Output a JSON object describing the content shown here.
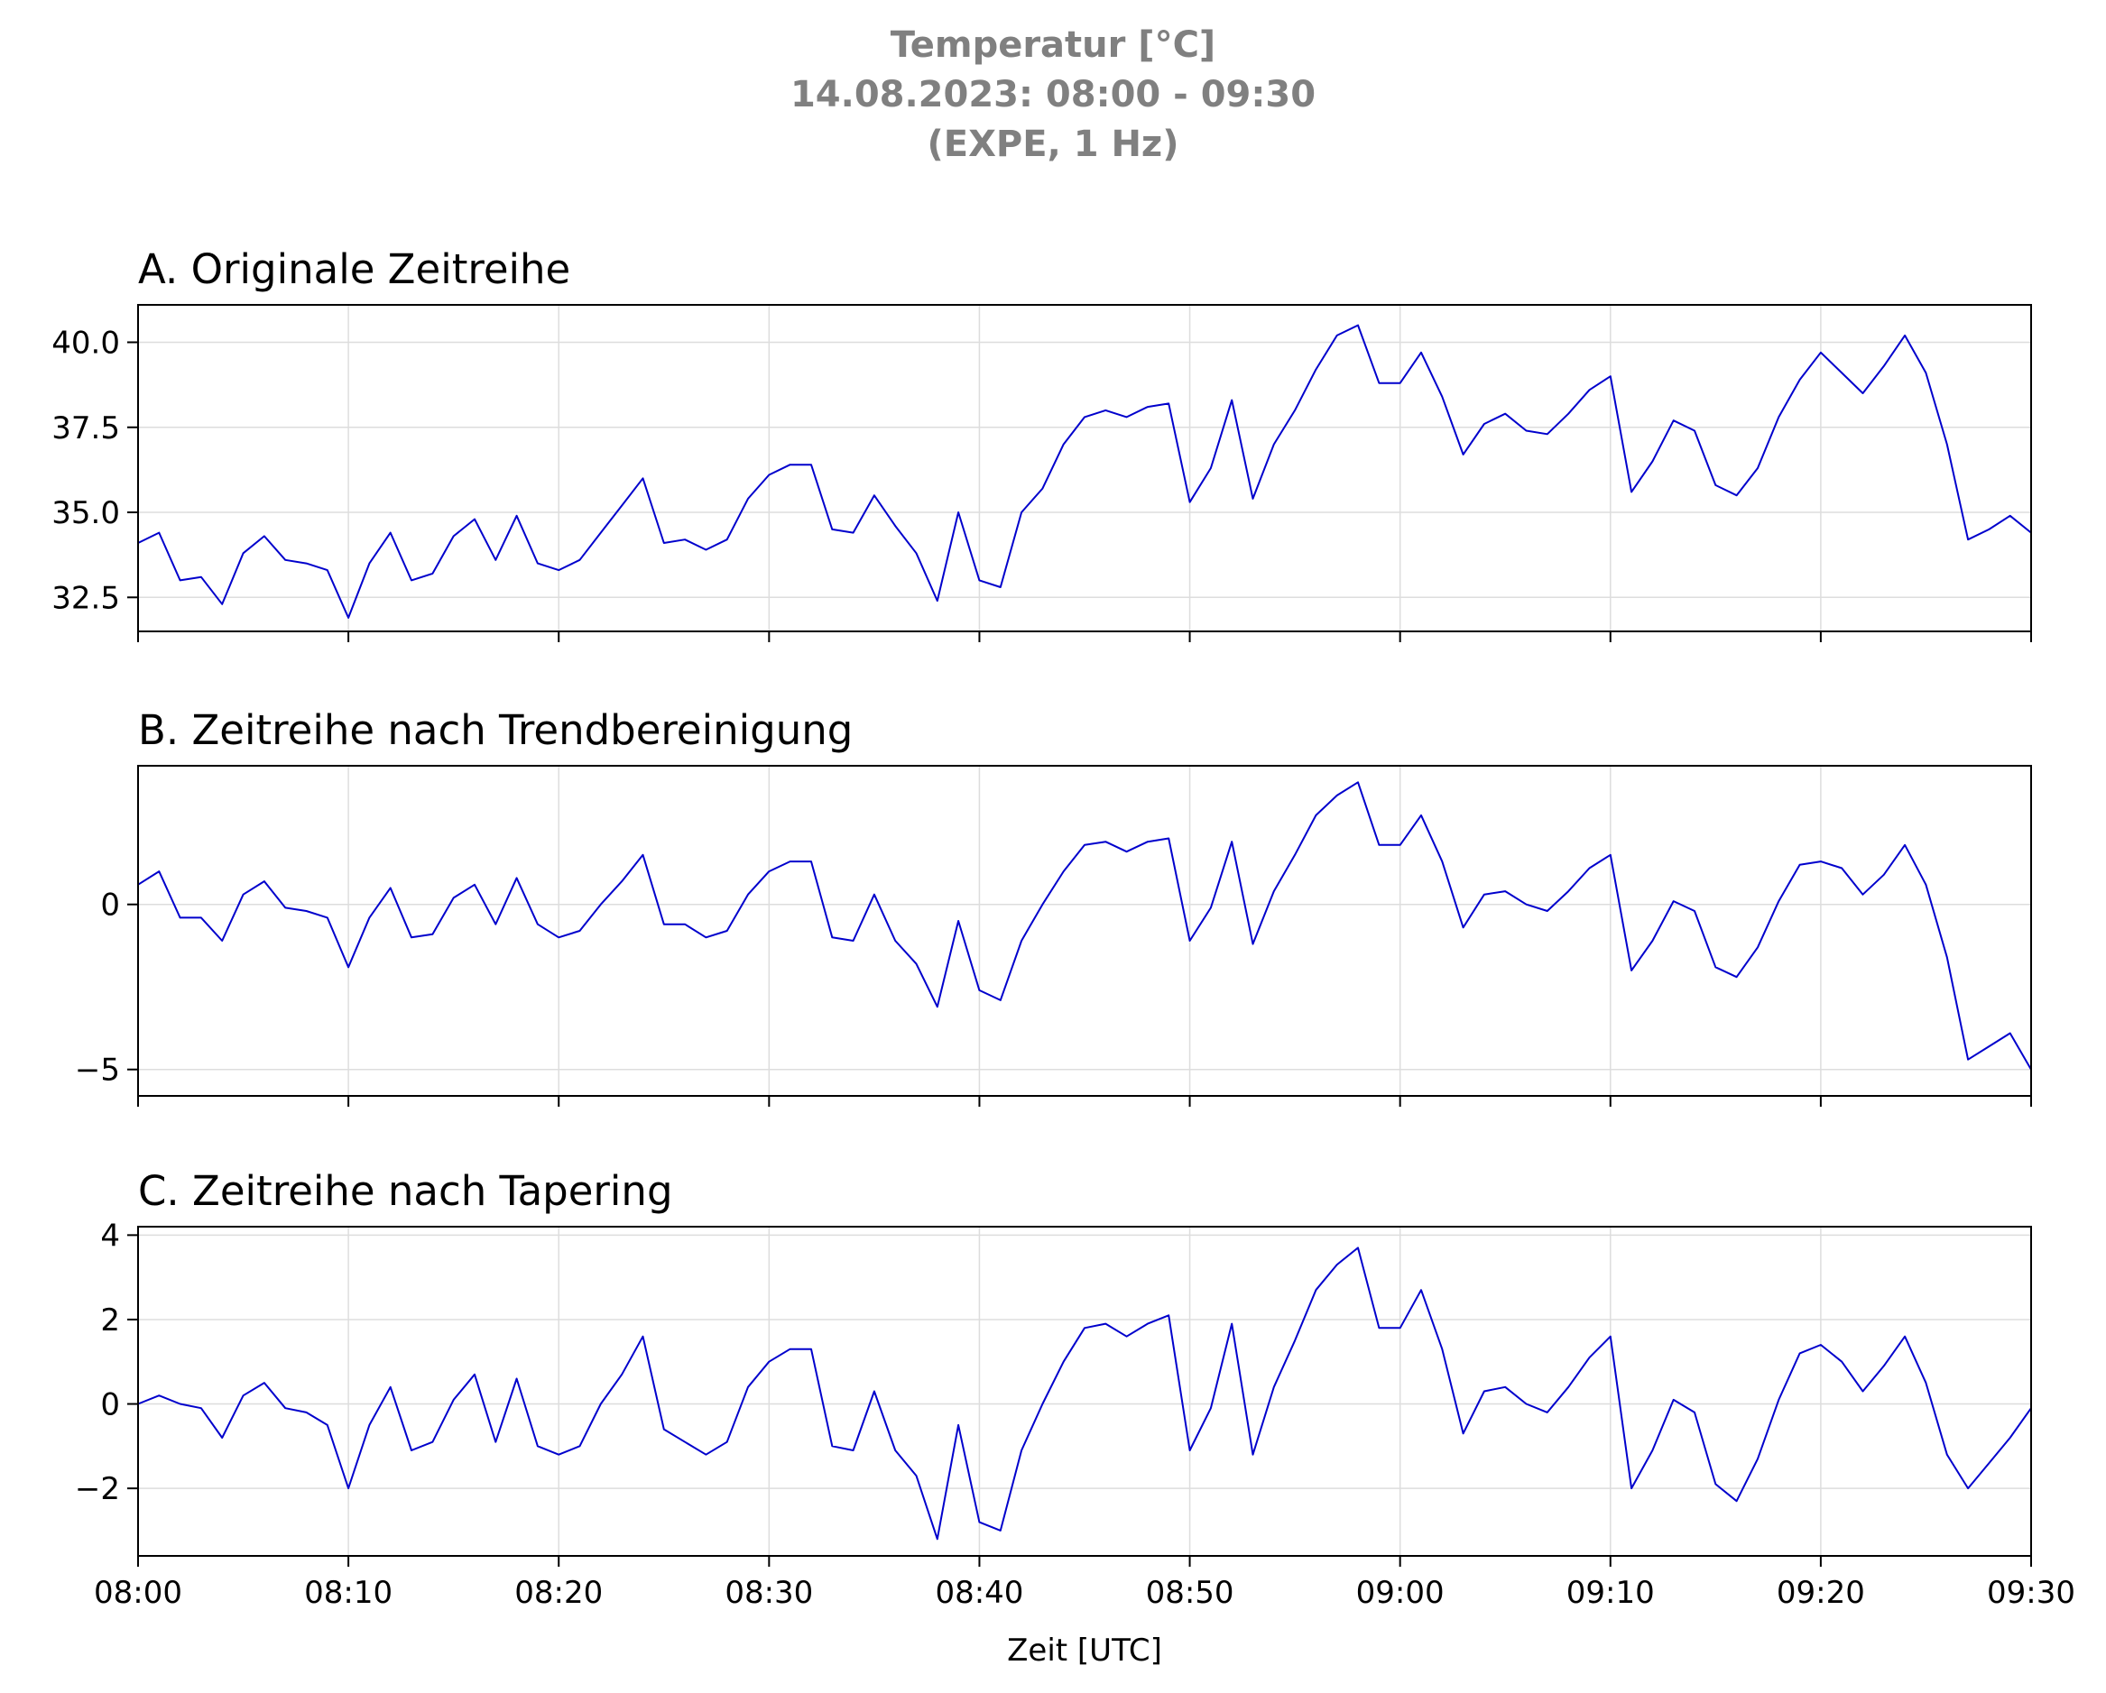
{
  "figure": {
    "title_lines": [
      "Temperatur [°C]",
      "14.08.2023:  08:00 -  09:30",
      "(EXPE, 1 Hz)"
    ]
  },
  "chart_data": [
    {
      "type": "line",
      "title": "A. Originale Zeitreihe",
      "xlabel": "",
      "ylabel": "",
      "x_range": [
        "08:00",
        "09:30"
      ],
      "ylim": [
        31.5,
        41.1
      ],
      "yticks": [
        32.5,
        35.0,
        37.5,
        40.0
      ],
      "ytick_labels": [
        "32.5",
        "35.0",
        "37.5",
        "40.0"
      ],
      "xtick_labels": [],
      "grid": true,
      "color": "#0000cc",
      "series": [
        {
          "x": [
            "08:00",
            "08:01",
            "08:02",
            "08:03",
            "08:04",
            "08:05",
            "08:06",
            "08:07",
            "08:08",
            "08:09",
            "08:10",
            "08:11",
            "08:12",
            "08:13",
            "08:14",
            "08:15",
            "08:16",
            "08:17",
            "08:18",
            "08:19",
            "08:20",
            "08:21",
            "08:22",
            "08:23",
            "08:24",
            "08:25",
            "08:26",
            "08:27",
            "08:28",
            "08:29",
            "08:30",
            "08:31",
            "08:32",
            "08:33",
            "08:34",
            "08:35",
            "08:36",
            "08:37",
            "08:38",
            "08:39",
            "08:40",
            "08:41",
            "08:42",
            "08:43",
            "08:44",
            "08:45",
            "08:46",
            "08:47",
            "08:48",
            "08:49",
            "08:50",
            "08:51",
            "08:52",
            "08:53",
            "08:54",
            "08:55",
            "08:56",
            "08:57",
            "08:58",
            "08:59",
            "09:00",
            "09:01",
            "09:02",
            "09:03",
            "09:04",
            "09:05",
            "09:06",
            "09:07",
            "09:08",
            "09:09",
            "09:10",
            "09:11",
            "09:12",
            "09:13",
            "09:14",
            "09:15",
            "09:16",
            "09:17",
            "09:18",
            "09:19",
            "09:20",
            "09:21",
            "09:22",
            "09:23",
            "09:24",
            "09:25",
            "09:26",
            "09:27",
            "09:28",
            "09:29",
            "09:30"
          ],
          "values": [
            34.1,
            34.4,
            33.0,
            33.1,
            32.3,
            33.8,
            34.3,
            33.6,
            33.5,
            33.3,
            31.9,
            33.5,
            34.4,
            33.0,
            33.2,
            34.3,
            34.8,
            33.6,
            34.9,
            33.5,
            33.3,
            33.6,
            34.4,
            35.2,
            36.0,
            34.1,
            34.2,
            33.9,
            34.2,
            35.4,
            36.1,
            36.4,
            36.4,
            34.5,
            34.4,
            35.5,
            34.6,
            33.8,
            32.4,
            35.0,
            33.0,
            32.8,
            35.0,
            35.7,
            37.0,
            37.8,
            38.0,
            37.8,
            38.1,
            38.2,
            35.3,
            36.3,
            38.3,
            35.4,
            37.0,
            38.0,
            39.2,
            40.2,
            40.5,
            38.8,
            38.8,
            39.7,
            38.4,
            36.7,
            37.6,
            37.9,
            37.4,
            37.3,
            37.9,
            38.6,
            39.0,
            35.6,
            36.5,
            37.7,
            37.4,
            35.8,
            35.5,
            36.3,
            37.8,
            38.9,
            39.7,
            39.1,
            38.5,
            39.3,
            40.2,
            39.1,
            37.0,
            34.2,
            34.5,
            34.9,
            34.4
          ]
        }
      ]
    },
    {
      "type": "line",
      "title": "B. Zeitreihe nach Trendbereinigung",
      "xlabel": "",
      "ylabel": "",
      "x_range": [
        "08:00",
        "09:30"
      ],
      "ylim": [
        -5.8,
        4.2
      ],
      "yticks": [
        -5,
        0
      ],
      "ytick_labels": [
        "−5",
        "0"
      ],
      "xtick_labels": [],
      "grid": true,
      "color": "#0000cc",
      "series": [
        {
          "x": [
            "08:00",
            "08:01",
            "08:02",
            "08:03",
            "08:04",
            "08:05",
            "08:06",
            "08:07",
            "08:08",
            "08:09",
            "08:10",
            "08:11",
            "08:12",
            "08:13",
            "08:14",
            "08:15",
            "08:16",
            "08:17",
            "08:18",
            "08:19",
            "08:20",
            "08:21",
            "08:22",
            "08:23",
            "08:24",
            "08:25",
            "08:26",
            "08:27",
            "08:28",
            "08:29",
            "08:30",
            "08:31",
            "08:32",
            "08:33",
            "08:34",
            "08:35",
            "08:36",
            "08:37",
            "08:38",
            "08:39",
            "08:40",
            "08:41",
            "08:42",
            "08:43",
            "08:44",
            "08:45",
            "08:46",
            "08:47",
            "08:48",
            "08:49",
            "08:50",
            "08:51",
            "08:52",
            "08:53",
            "08:54",
            "08:55",
            "08:56",
            "08:57",
            "08:58",
            "08:59",
            "09:00",
            "09:01",
            "09:02",
            "09:03",
            "09:04",
            "09:05",
            "09:06",
            "09:07",
            "09:08",
            "09:09",
            "09:10",
            "09:11",
            "09:12",
            "09:13",
            "09:14",
            "09:15",
            "09:16",
            "09:17",
            "09:18",
            "09:19",
            "09:20",
            "09:21",
            "09:22",
            "09:23",
            "09:24",
            "09:25",
            "09:26",
            "09:27",
            "09:28",
            "09:29",
            "09:30"
          ],
          "values": [
            0.6,
            1.0,
            -0.4,
            -0.4,
            -1.1,
            0.3,
            0.7,
            -0.1,
            -0.2,
            -0.4,
            -1.9,
            -0.4,
            0.5,
            -1.0,
            -0.9,
            0.2,
            0.6,
            -0.6,
            0.8,
            -0.6,
            -1.0,
            -0.8,
            0.0,
            0.7,
            1.5,
            -0.6,
            -0.6,
            -1.0,
            -0.8,
            0.3,
            1.0,
            1.3,
            1.3,
            -1.0,
            -1.1,
            0.3,
            -1.1,
            -1.8,
            -3.1,
            -0.5,
            -2.6,
            -2.9,
            -1.1,
            0.0,
            1.0,
            1.8,
            1.9,
            1.6,
            1.9,
            2.0,
            -1.1,
            -0.1,
            1.9,
            -1.2,
            0.4,
            1.5,
            2.7,
            3.3,
            3.7,
            1.8,
            1.8,
            2.7,
            1.3,
            -0.7,
            0.3,
            0.4,
            0.0,
            -0.2,
            0.4,
            1.1,
            1.5,
            -2.0,
            -1.1,
            0.1,
            -0.2,
            -1.9,
            -2.2,
            -1.3,
            0.1,
            1.2,
            1.3,
            1.1,
            0.3,
            0.9,
            1.8,
            0.6,
            -1.6,
            -4.7,
            -4.3,
            -3.9,
            -5.0
          ]
        }
      ]
    },
    {
      "type": "line",
      "title": "C. Zeitreihe nach Tapering",
      "xlabel": "Zeit [UTC]",
      "ylabel": "",
      "x_range": [
        "08:00",
        "09:30"
      ],
      "ylim": [
        -3.6,
        4.2
      ],
      "yticks": [
        -2,
        0,
        2,
        4
      ],
      "ytick_labels": [
        "−2",
        "0",
        "2",
        "4"
      ],
      "xtick_labels": [
        "08:00",
        "08:10",
        "08:20",
        "08:30",
        "08:40",
        "08:50",
        "09:00",
        "09:10",
        "09:20",
        "09:30"
      ],
      "grid": true,
      "color": "#0000cc",
      "series": [
        {
          "x": [
            "08:00",
            "08:01",
            "08:02",
            "08:03",
            "08:04",
            "08:05",
            "08:06",
            "08:07",
            "08:08",
            "08:09",
            "08:10",
            "08:11",
            "08:12",
            "08:13",
            "08:14",
            "08:15",
            "08:16",
            "08:17",
            "08:18",
            "08:19",
            "08:20",
            "08:21",
            "08:22",
            "08:23",
            "08:24",
            "08:25",
            "08:26",
            "08:27",
            "08:28",
            "08:29",
            "08:30",
            "08:31",
            "08:32",
            "08:33",
            "08:34",
            "08:35",
            "08:36",
            "08:37",
            "08:38",
            "08:39",
            "08:40",
            "08:41",
            "08:42",
            "08:43",
            "08:44",
            "08:45",
            "08:46",
            "08:47",
            "08:48",
            "08:49",
            "08:50",
            "08:51",
            "08:52",
            "08:53",
            "08:54",
            "08:55",
            "08:56",
            "08:57",
            "08:58",
            "08:59",
            "09:00",
            "09:01",
            "09:02",
            "09:03",
            "09:04",
            "09:05",
            "09:06",
            "09:07",
            "09:08",
            "09:09",
            "09:10",
            "09:11",
            "09:12",
            "09:13",
            "09:14",
            "09:15",
            "09:16",
            "09:17",
            "09:18",
            "09:19",
            "09:20",
            "09:21",
            "09:22",
            "09:23",
            "09:24",
            "09:25",
            "09:26",
            "09:27",
            "09:28",
            "09:29",
            "09:30"
          ],
          "values": [
            0.0,
            0.2,
            0.0,
            -0.1,
            -0.8,
            0.2,
            0.5,
            -0.1,
            -0.2,
            -0.5,
            -2.0,
            -0.5,
            0.4,
            -1.1,
            -0.9,
            0.1,
            0.7,
            -0.9,
            0.6,
            -1.0,
            -1.2,
            -1.0,
            0.0,
            0.7,
            1.6,
            -0.6,
            -0.9,
            -1.2,
            -0.9,
            0.4,
            1.0,
            1.3,
            1.3,
            -1.0,
            -1.1,
            0.3,
            -1.1,
            -1.7,
            -3.2,
            -0.5,
            -2.8,
            -3.0,
            -1.1,
            0.0,
            1.0,
            1.8,
            1.9,
            1.6,
            1.9,
            2.1,
            -1.1,
            -0.1,
            1.9,
            -1.2,
            0.4,
            1.5,
            2.7,
            3.3,
            3.7,
            1.8,
            1.8,
            2.7,
            1.3,
            -0.7,
            0.3,
            0.4,
            0.0,
            -0.2,
            0.4,
            1.1,
            1.6,
            -2.0,
            -1.1,
            0.1,
            -0.2,
            -1.9,
            -2.3,
            -1.3,
            0.1,
            1.2,
            1.4,
            1.0,
            0.3,
            0.9,
            1.6,
            0.5,
            -1.2,
            -2.0,
            -1.4,
            -0.8,
            -0.1
          ]
        }
      ]
    }
  ]
}
